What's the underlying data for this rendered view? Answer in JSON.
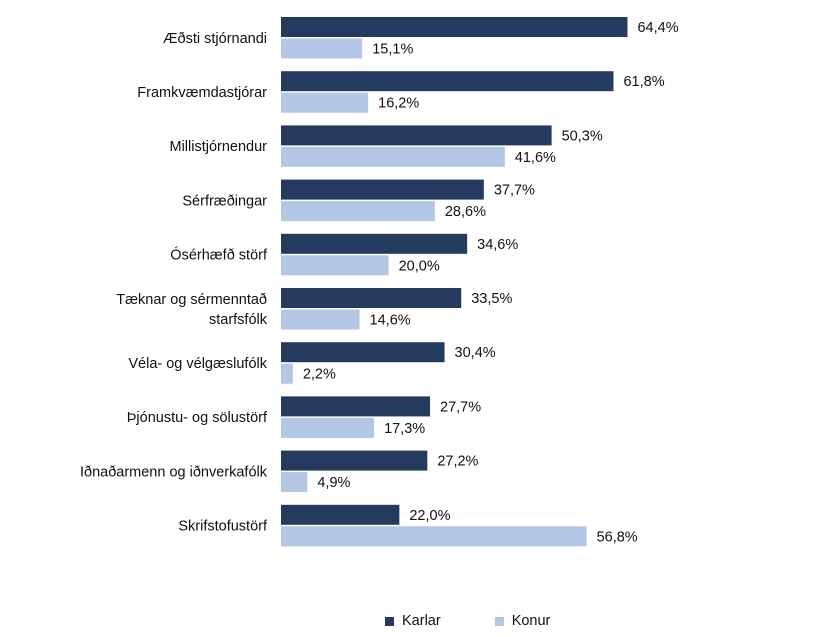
{
  "chart_data": {
    "type": "bar",
    "orientation": "horizontal",
    "categories": [
      "Æðsti stjórnandi",
      "Framkvæmdastjórar",
      "Millistjórnendur",
      "Sérfræðingar",
      "Ósérhæfð störf",
      "Tæknar og sérmenntað starfsfólk",
      "Véla- og vélgæslufólk",
      "Þjónustu- og sölustörf",
      "Iðnaðarmenn og iðnverkafólk",
      "Skrifstofustörf"
    ],
    "category_lines": [
      [
        "Æðsti stjórnandi"
      ],
      [
        "Framkvæmdastjórar"
      ],
      [
        "Millistjórnendur"
      ],
      [
        "Sérfræðingar"
      ],
      [
        "Ósérhæfð störf"
      ],
      [
        "Tæknar og sérmenntað",
        "starfsfólk"
      ],
      [
        "Véla- og vélgæslufólk"
      ],
      [
        "Þjónustu- og sölustörf"
      ],
      [
        "Iðnaðarmenn og iðnverkafólk"
      ],
      [
        "Skrifstofustörf"
      ]
    ],
    "series": [
      {
        "name": "Karlar",
        "color": "#243a5e",
        "values": [
          64.4,
          61.8,
          50.3,
          37.7,
          34.6,
          33.5,
          30.4,
          27.7,
          27.2,
          22.0
        ],
        "labels": [
          "64,4%",
          "61,8%",
          "50,3%",
          "37,7%",
          "34,6%",
          "33,5%",
          "30,4%",
          "27,7%",
          "27,2%",
          "22,0%"
        ]
      },
      {
        "name": "Konur",
        "color": "#b3c6e3",
        "values": [
          15.1,
          16.2,
          41.6,
          28.6,
          20.0,
          14.6,
          2.2,
          17.3,
          4.9,
          56.8
        ],
        "labels": [
          "15,1%",
          "16,2%",
          "41,6%",
          "28,6%",
          "20,0%",
          "14,6%",
          "2,2%",
          "17,3%",
          "4,9%",
          "56,8%"
        ]
      }
    ],
    "xlim": [
      0,
      100
    ],
    "grid": false,
    "legend_position": "bottom"
  }
}
